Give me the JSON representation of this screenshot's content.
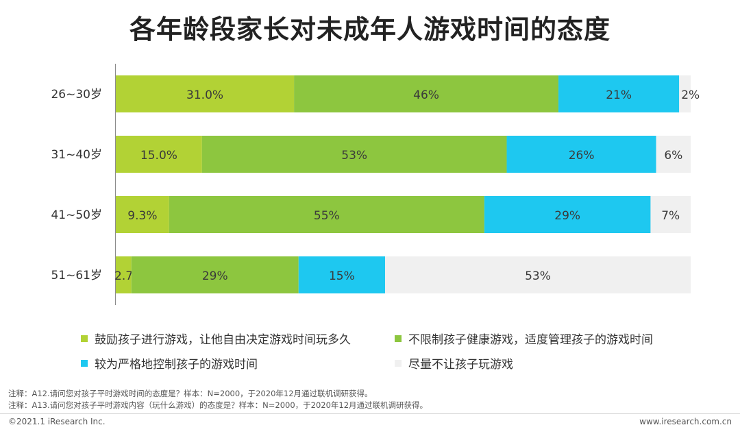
{
  "title": "各年龄段家长对未成年人游戏时间的态度",
  "chart_data": {
    "type": "bar",
    "orientation": "horizontal",
    "stacked": true,
    "categories": [
      "26~30岁",
      "31~40岁",
      "41~50岁",
      "51~61岁"
    ],
    "series": [
      {
        "name": "鼓励孩子进行游戏，让他自由决定游戏时间玩多久",
        "color": "#b2d235",
        "values": [
          31.0,
          15.0,
          9.3,
          2.7
        ],
        "labels": [
          "31.0%",
          "15.0%",
          "9.3%",
          "2.7%"
        ]
      },
      {
        "name": "不限制孩子健康游戏，适度管理孩子的游戏时间",
        "color": "#8dc63f",
        "values": [
          46,
          53,
          55,
          29
        ],
        "labels": [
          "46%",
          "53%",
          "55%",
          "29%"
        ]
      },
      {
        "name": "较为严格地控制孩子的游戏时间",
        "color": "#1ec8f0",
        "values": [
          21,
          26,
          29,
          15
        ],
        "labels": [
          "21%",
          "26%",
          "29%",
          "15%"
        ]
      },
      {
        "name": "尽量不让孩子玩游戏",
        "color": "#f0f0f0",
        "values": [
          2,
          6,
          7,
          53
        ],
        "labels": [
          "2%",
          "6%",
          "7%",
          "53%"
        ]
      }
    ],
    "xlim": [
      0,
      100
    ]
  },
  "notes": [
    "注释：A12.请问您对孩子平时游戏时间的态度是？样本：N=2000，于2020年12月通过联机调研获得。",
    "注释：A13.请问您对孩子平时游戏内容（玩什么游戏）的态度是？样本：N=2000，于2020年12月通过联机调研获得。"
  ],
  "footer": {
    "copyright": "©2021.1 iResearch Inc.",
    "website": "www.iresearch.com.cn"
  }
}
